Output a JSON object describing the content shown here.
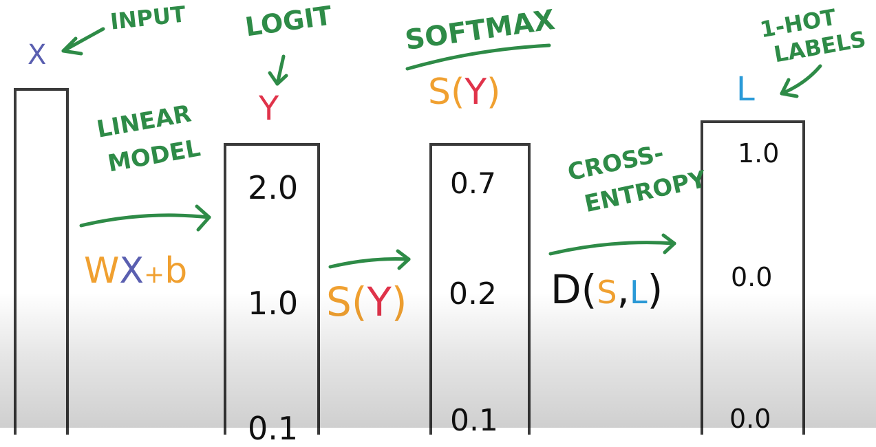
{
  "colors": {
    "green": "#2e8b47",
    "purple": "#5a5fb0",
    "red": "#e0334a",
    "orange": "#f0a030",
    "blue": "#2a9ad8",
    "black": "#111111",
    "box": "#3a3a3a"
  },
  "labels": {
    "input_annot": "INPUT",
    "x_var": "X",
    "logit_annot": "LOGIT",
    "y_var": "Y",
    "softmax_annot": "SOFTMAX",
    "softmax_func": {
      "s": "S",
      "open": "(",
      "y": "Y",
      "close": ")"
    },
    "onehot_line1": "1-HOT",
    "onehot_line2": "LABELS",
    "l_var": "L",
    "linear_line1": "LINEAR",
    "linear_line2": "MODEL",
    "linear_formula": {
      "w": "W",
      "x": "X",
      "plus": "+",
      "b": "b"
    },
    "softmax_arrow_label": {
      "s": "S",
      "open": "(",
      "y": "Y",
      "close": ")"
    },
    "cross_line1": "CROSS-",
    "cross_line2": "ENTROPY",
    "cross_formula": {
      "d": "D",
      "open": "(",
      "s": "S",
      "comma": ",",
      "l": "L",
      "close": ")"
    }
  },
  "columns": {
    "logits": [
      "2.0",
      "1.0",
      "0.1"
    ],
    "softmax": [
      "0.7",
      "0.2",
      "0.1"
    ],
    "labels": [
      "1.0",
      "0.0",
      "0.0"
    ]
  }
}
